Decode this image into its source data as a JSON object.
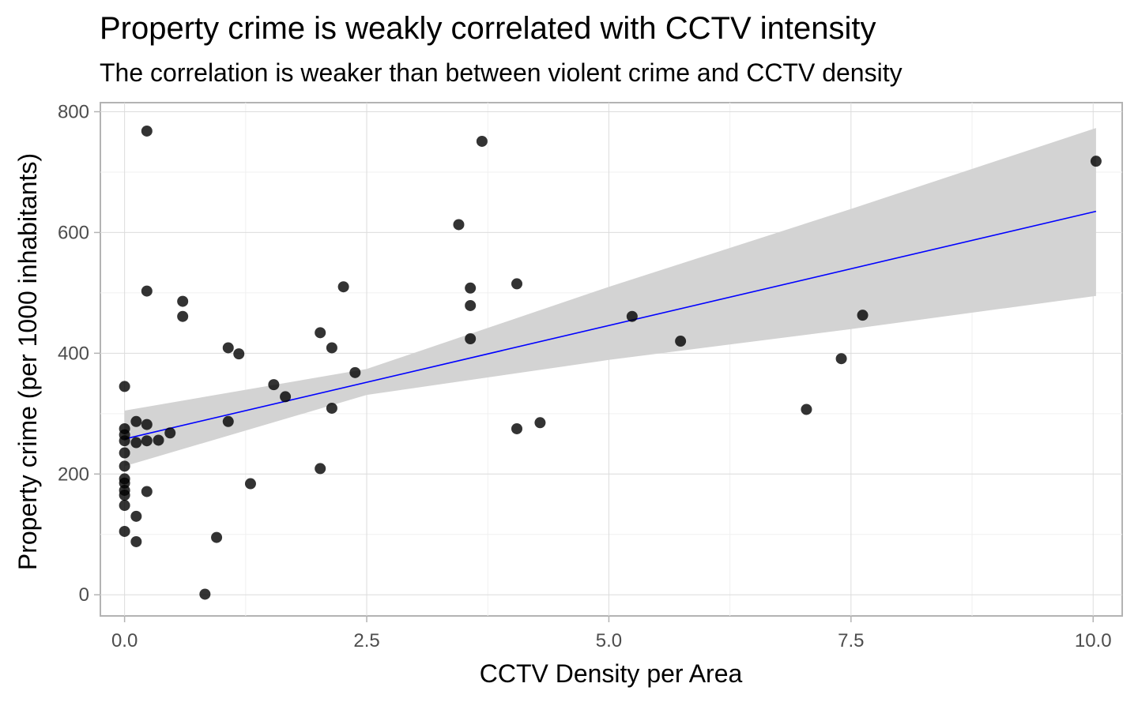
{
  "chart_data": {
    "type": "scatter",
    "title": "Property crime is weakly correlated with CCTV intensity",
    "subtitle": "The correlation is weaker than between violent crime and CCTV density",
    "xlabel": "CCTV Density per Area",
    "ylabel": "Property crime (per 1000 inhabitants)",
    "xlim": [
      -0.25,
      10.3
    ],
    "ylim": [
      -35,
      815
    ],
    "x_ticks": [
      0,
      2.5,
      5,
      7.5,
      10
    ],
    "x_tick_labels": [
      "0.0",
      "2.5",
      "5.0",
      "7.5",
      "10.0"
    ],
    "y_ticks": [
      0,
      200,
      400,
      600,
      800
    ],
    "y_tick_labels": [
      "0",
      "200",
      "400",
      "600",
      "800"
    ],
    "grid": true,
    "points": [
      {
        "x": 0.0,
        "y": 345
      },
      {
        "x": 0.0,
        "y": 275
      },
      {
        "x": 0.0,
        "y": 265
      },
      {
        "x": 0.0,
        "y": 255
      },
      {
        "x": 0.0,
        "y": 235
      },
      {
        "x": 0.0,
        "y": 213
      },
      {
        "x": 0.0,
        "y": 192
      },
      {
        "x": 0.0,
        "y": 185
      },
      {
        "x": 0.0,
        "y": 173
      },
      {
        "x": 0.0,
        "y": 165
      },
      {
        "x": 0.0,
        "y": 148
      },
      {
        "x": 0.0,
        "y": 105
      },
      {
        "x": 0.12,
        "y": 287
      },
      {
        "x": 0.12,
        "y": 252
      },
      {
        "x": 0.12,
        "y": 130
      },
      {
        "x": 0.12,
        "y": 88
      },
      {
        "x": 0.23,
        "y": 768
      },
      {
        "x": 0.23,
        "y": 503
      },
      {
        "x": 0.23,
        "y": 282
      },
      {
        "x": 0.23,
        "y": 255
      },
      {
        "x": 0.23,
        "y": 171
      },
      {
        "x": 0.35,
        "y": 256
      },
      {
        "x": 0.47,
        "y": 268
      },
      {
        "x": 0.6,
        "y": 486
      },
      {
        "x": 0.6,
        "y": 461
      },
      {
        "x": 0.83,
        "y": 1
      },
      {
        "x": 0.95,
        "y": 95
      },
      {
        "x": 1.07,
        "y": 409
      },
      {
        "x": 1.07,
        "y": 287
      },
      {
        "x": 1.18,
        "y": 399
      },
      {
        "x": 1.3,
        "y": 184
      },
      {
        "x": 1.54,
        "y": 348
      },
      {
        "x": 1.66,
        "y": 328
      },
      {
        "x": 2.02,
        "y": 434
      },
      {
        "x": 2.02,
        "y": 209
      },
      {
        "x": 2.14,
        "y": 409
      },
      {
        "x": 2.14,
        "y": 309
      },
      {
        "x": 2.26,
        "y": 510
      },
      {
        "x": 2.38,
        "y": 368
      },
      {
        "x": 3.45,
        "y": 613
      },
      {
        "x": 3.57,
        "y": 508
      },
      {
        "x": 3.57,
        "y": 479
      },
      {
        "x": 3.57,
        "y": 424
      },
      {
        "x": 3.69,
        "y": 751
      },
      {
        "x": 4.05,
        "y": 515
      },
      {
        "x": 4.05,
        "y": 275
      },
      {
        "x": 4.29,
        "y": 285
      },
      {
        "x": 5.24,
        "y": 461
      },
      {
        "x": 5.74,
        "y": 420
      },
      {
        "x": 7.04,
        "y": 307
      },
      {
        "x": 7.4,
        "y": 391
      },
      {
        "x": 7.62,
        "y": 463
      },
      {
        "x": 10.03,
        "y": 718
      }
    ],
    "trend": {
      "x": [
        0,
        10.03
      ],
      "y": [
        258,
        635
      ],
      "color": "#0000ff"
    },
    "band": {
      "x": [
        0,
        2.5,
        5,
        7.5,
        10.03
      ],
      "lower": [
        213,
        331,
        389,
        440,
        495
      ],
      "upper": [
        305,
        374,
        510,
        639,
        773
      ],
      "color": "#d3d3d3"
    },
    "point_color": "#000000"
  }
}
